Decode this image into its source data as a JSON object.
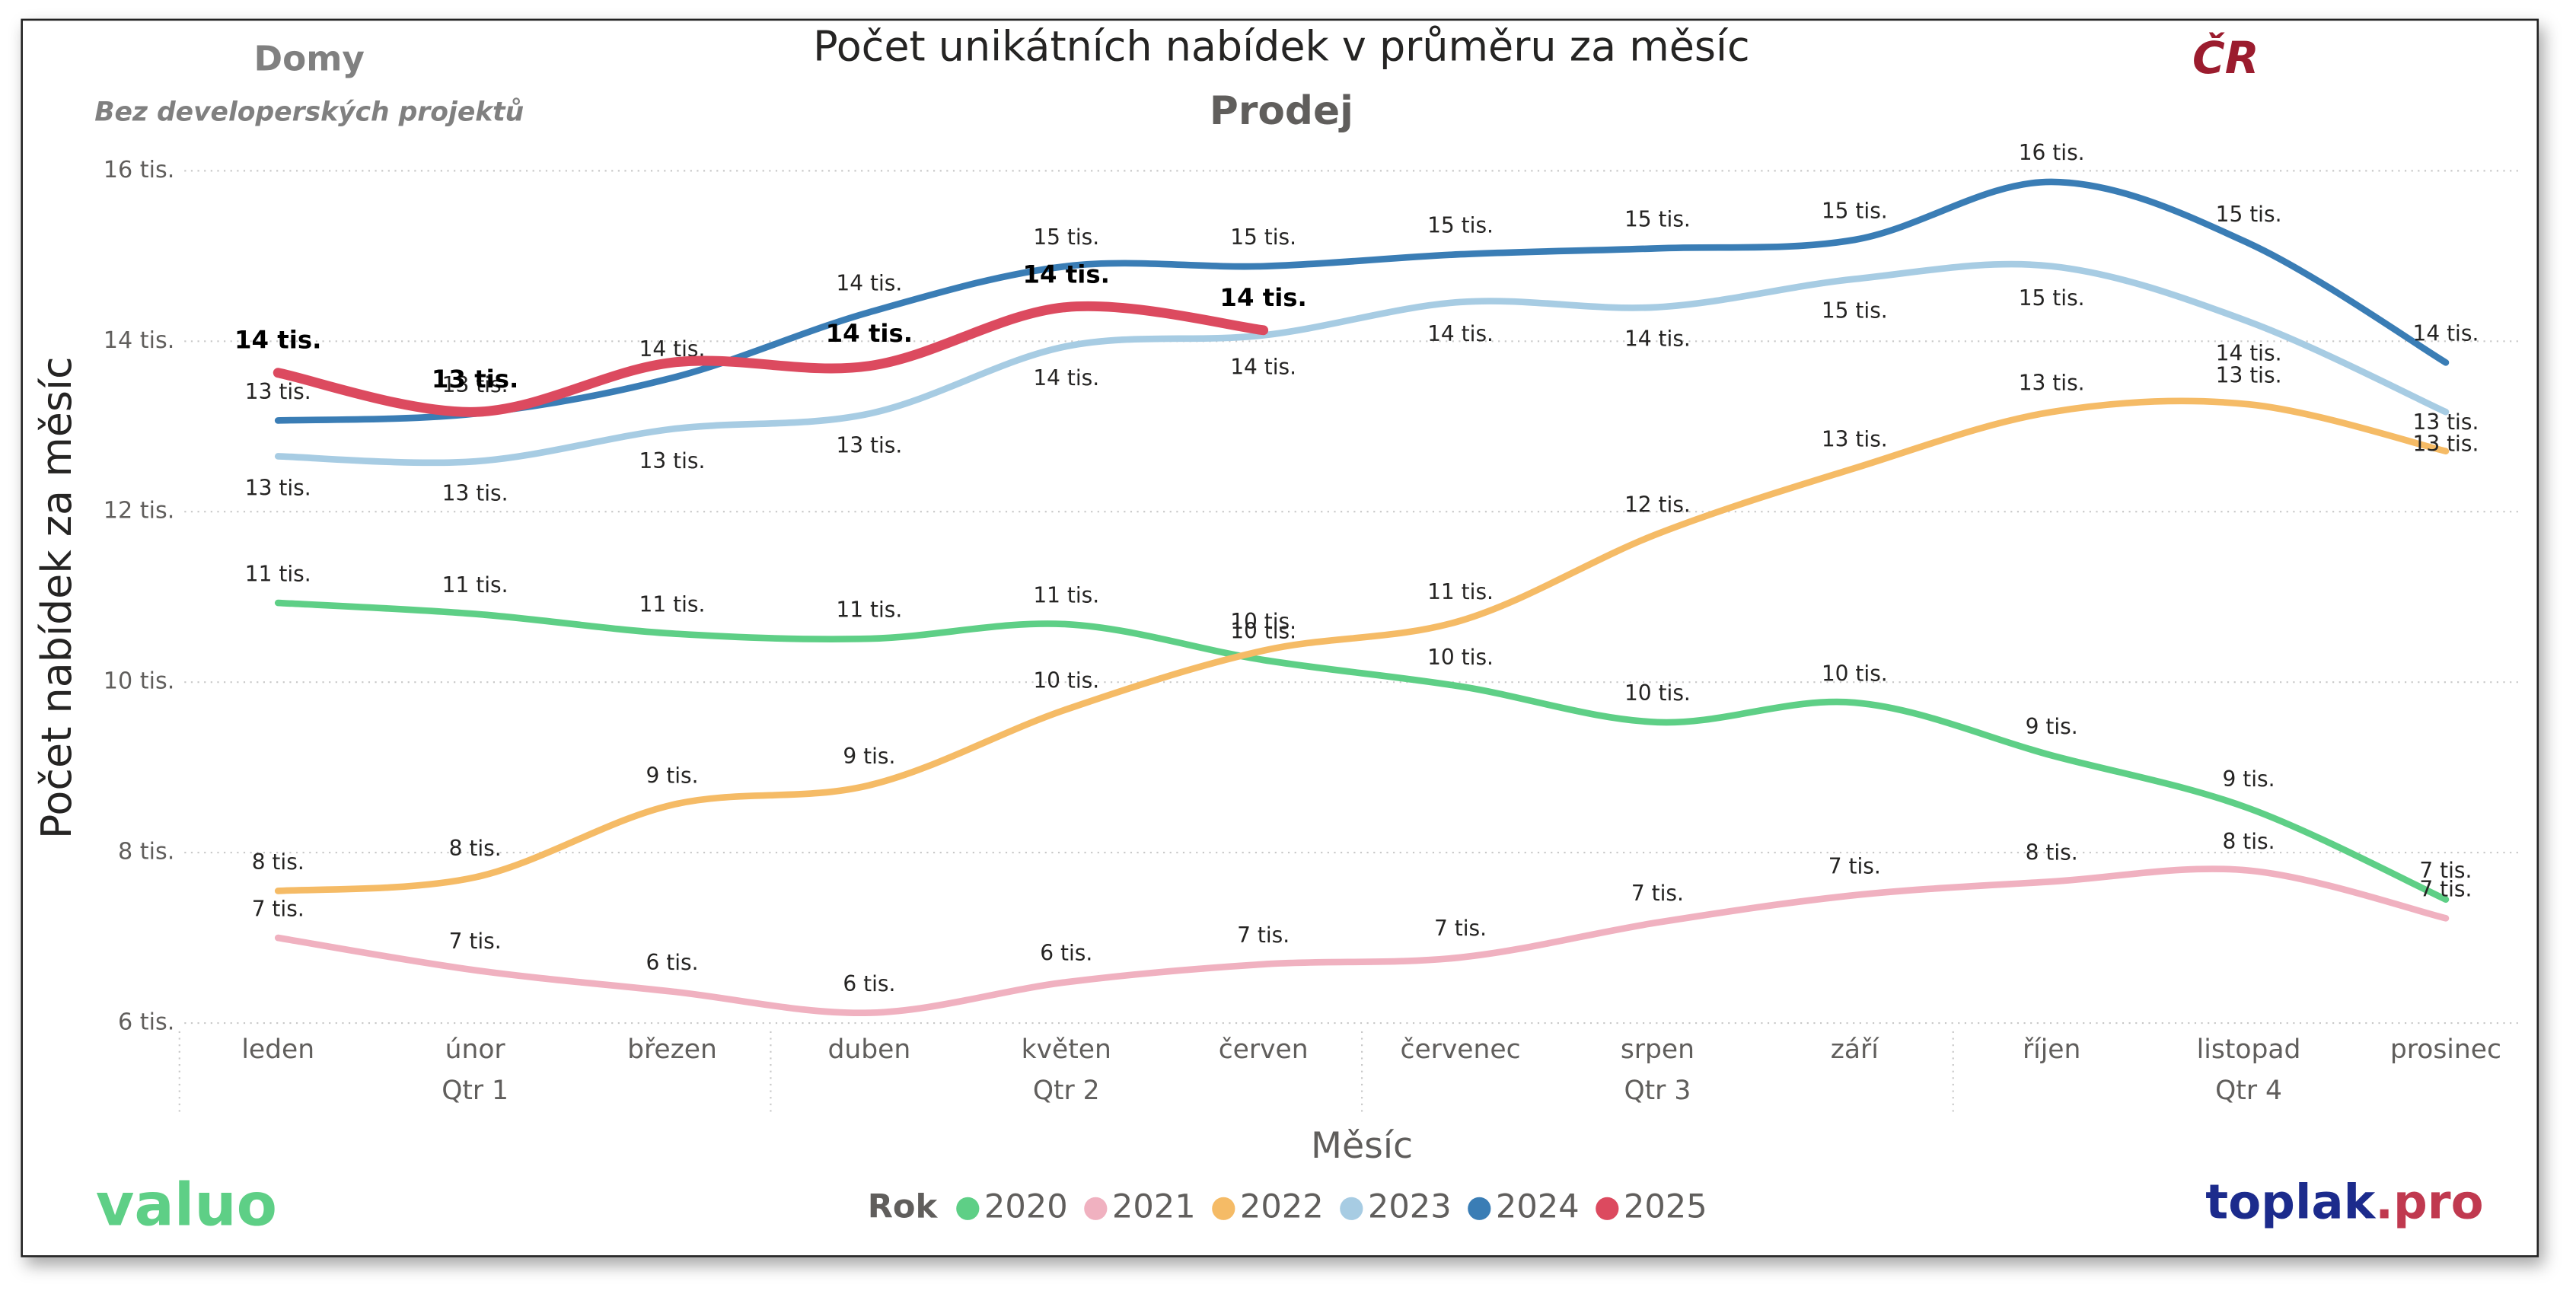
{
  "chart_data": {
    "type": "line",
    "title": "Počet unikátních nabídek v průměru za měsíc",
    "subtitle": "Prodej",
    "top_left_title": "Domy",
    "top_left_note": "Bez developerských projektů",
    "region": "ČR",
    "y_label": "Počet nabídek za měsíc",
    "x_label": "Měsíc",
    "legend_title": "Rok",
    "brand_left": "valuo",
    "brand_right": {
      "name": "toplak",
      "suffix": ".pro"
    },
    "categories": [
      "leden",
      "únor",
      "březen",
      "duben",
      "květen",
      "červen",
      "červenec",
      "srpen",
      "září",
      "říjen",
      "listopad",
      "prosinec"
    ],
    "quarters": [
      "Qtr 1",
      "Qtr 2",
      "Qtr 3",
      "Qtr 4"
    ],
    "ylim": [
      6,
      16
    ],
    "yticks": [
      {
        "value": 6,
        "label": "6 tis."
      },
      {
        "value": 8,
        "label": "8 tis."
      },
      {
        "value": 10,
        "label": "10 tis."
      },
      {
        "value": 12,
        "label": "12 tis."
      },
      {
        "value": 14,
        "label": "14 tis."
      },
      {
        "value": 16,
        "label": "16 tis."
      }
    ],
    "grid": true,
    "series": [
      {
        "name": "2020",
        "color": "#5ecf86",
        "values": [
          10.93,
          10.8,
          10.57,
          10.51,
          10.68,
          10.26,
          9.95,
          9.53,
          9.76,
          9.14,
          8.52,
          7.45
        ],
        "value_labels": [
          "11 tis.",
          "11 tis.",
          "11 tis.",
          "11 tis.",
          "11 tis.",
          "10 tis.",
          "10 tis.",
          "10 tis.",
          "10 tis.",
          "9 tis.",
          "9 tis.",
          "7 tis."
        ]
      },
      {
        "name": "2021",
        "color": "#f0b1c0",
        "values": [
          7.0,
          6.62,
          6.37,
          6.12,
          6.48,
          6.69,
          6.77,
          7.18,
          7.5,
          7.66,
          7.79,
          7.23
        ],
        "value_labels": [
          "7 tis.",
          "7 tis.",
          "6 tis.",
          "6 tis.",
          "6 tis.",
          "7 tis.",
          "7 tis.",
          "7 tis.",
          "7 tis.",
          "8 tis.",
          "8 tis.",
          "7 tis."
        ]
      },
      {
        "name": "2022",
        "color": "#f5bb66",
        "values": [
          7.55,
          7.71,
          8.56,
          8.79,
          9.68,
          10.37,
          10.72,
          11.74,
          12.51,
          13.17,
          13.26,
          12.71
        ],
        "value_labels": [
          "8 tis.",
          "8 tis.",
          "9 tis.",
          "9 tis.",
          "10 tis.",
          "10 tis.",
          "11 tis.",
          "12 tis.",
          "13 tis.",
          "13 tis.",
          "13 tis.",
          "13 tis."
        ]
      },
      {
        "name": "2023",
        "color": "#a7cce3",
        "values": [
          12.65,
          12.59,
          12.97,
          13.15,
          13.94,
          14.07,
          14.46,
          14.4,
          14.73,
          14.88,
          14.23,
          13.17
        ],
        "value_labels": [
          "13 tis.",
          "13 tis.",
          "13 tis.",
          "13 tis.",
          "14 tis.",
          "14 tis.",
          "14 tis.",
          "14 tis.",
          "15 tis.",
          "15 tis.",
          "14 tis.",
          "13 tis."
        ]
      },
      {
        "name": "2024",
        "color": "#3a7db5",
        "values": [
          13.07,
          13.15,
          13.57,
          14.34,
          14.88,
          14.88,
          15.02,
          15.09,
          15.19,
          15.87,
          15.15,
          13.75
        ],
        "value_labels": [
          "13 tis.",
          "13 tis.",
          "14 tis.",
          "14 tis.",
          "15 tis.",
          "15 tis.",
          "15 tis.",
          "15 tis.",
          "15 tis.",
          "16 tis.",
          "15 tis.",
          "14 tis."
        ]
      },
      {
        "name": "2025",
        "color": "#dc4a5f",
        "bold": true,
        "values": [
          13.63,
          13.17,
          13.75,
          13.71,
          14.4,
          14.13,
          null,
          null,
          null,
          null,
          null,
          null
        ],
        "value_labels": [
          "14 tis.",
          "13 tis.",
          null,
          "14 tis.",
          "14 tis.",
          "14 tis.",
          null,
          null,
          null,
          null,
          null,
          null
        ]
      }
    ]
  }
}
